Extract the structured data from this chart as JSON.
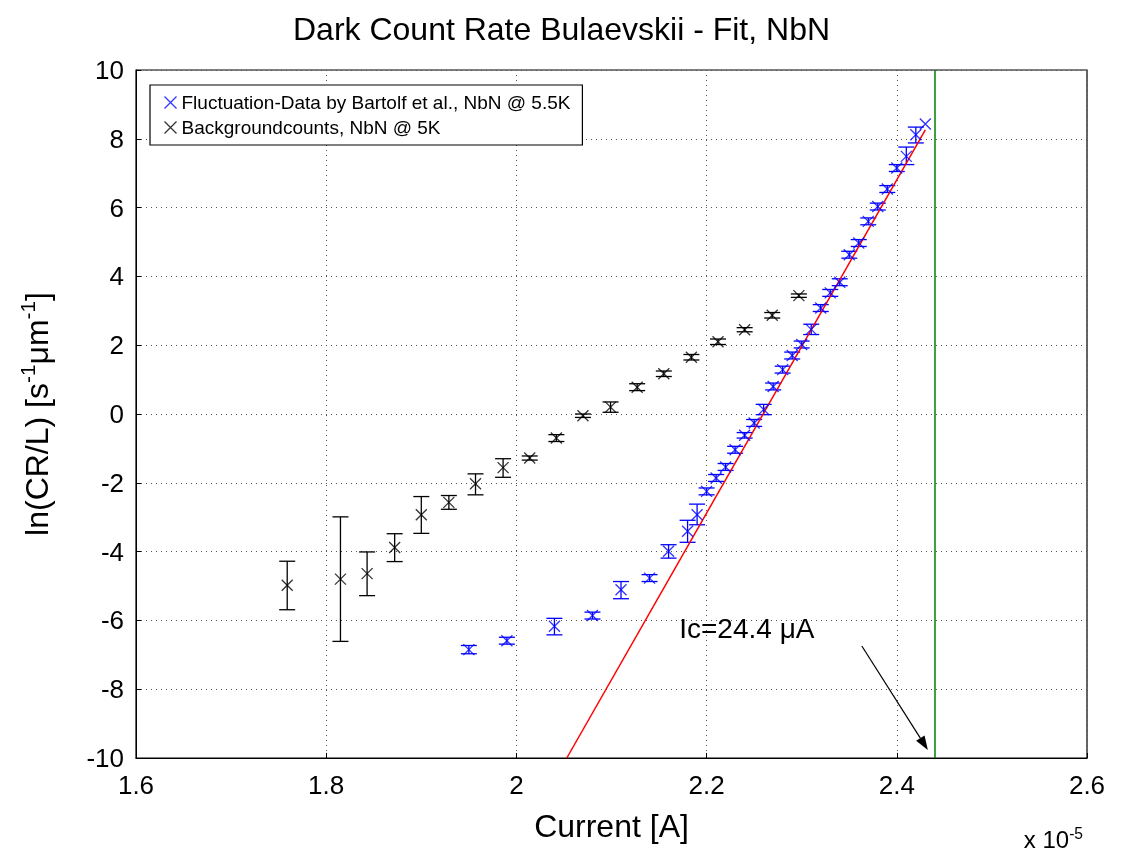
{
  "chart_data": {
    "type": "scatter",
    "title": "Dark Count Rate Bulaevskii - Fit, NbN",
    "xlabel": "Current [A]",
    "ylabel": "ln(CR/L) [s$^{-1}$μm$^{-1}$]",
    "xlim": [
      1.6,
      2.6
    ],
    "xticks": [
      1.6,
      1.8,
      2,
      2.2,
      2.4,
      2.6
    ],
    "ylim": [
      -10,
      10
    ],
    "yticks": [
      -10,
      -8,
      -6,
      -4,
      -2,
      0,
      2,
      4,
      6,
      8,
      10
    ],
    "grid": true,
    "legend": "top left",
    "marker": "cross",
    "series": [
      {
        "name": "Fluctuation-Data by Bartolf et al., NbN @ 5.5K",
        "color": "#0000ff",
        "x": [
          1.95,
          1.99,
          2.04,
          2.08,
          2.11,
          2.14,
          2.16,
          2.18,
          2.19,
          2.2,
          2.21,
          2.22,
          2.23,
          2.24,
          2.25,
          2.26,
          2.27,
          2.28,
          2.29,
          2.3,
          2.31,
          2.32,
          2.33,
          2.34,
          2.35,
          2.36,
          2.37,
          2.38,
          2.39,
          2.4,
          2.41,
          2.42,
          2.43
        ],
        "values": [
          -6.85,
          -6.59,
          -6.17,
          -5.86,
          -5.11,
          -4.77,
          -3.99,
          -3.41,
          -2.93,
          -2.25,
          -1.86,
          -1.54,
          -1.04,
          -0.62,
          -0.26,
          0.13,
          0.8,
          1.29,
          1.7,
          2.02,
          2.46,
          3.08,
          3.52,
          3.83,
          4.63,
          4.97,
          5.6,
          6.03,
          6.54,
          7.15,
          7.49,
          8.12,
          8.43
        ],
        "errors": [
          0.12,
          0.1,
          [
            -6.42,
            -5.94
          ],
          0.1,
          [
            -5.37,
            -4.87
          ],
          0.1,
          [
            -4.19,
            -3.8
          ],
          [
            -3.73,
            -3.09
          ],
          [
            -3.22,
            -2.62
          ],
          0.1,
          0.1,
          0.1,
          0.1,
          0.08,
          0.1,
          0.15,
          0.1,
          0.1,
          0.1,
          0.1,
          0.15,
          0.1,
          0.1,
          0.1,
          0.1,
          0.1,
          0.1,
          0.1,
          0.1,
          0.1,
          [
            7.25,
            7.76
          ],
          [
            7.88,
            8.34
          ],
          null
        ]
      },
      {
        "name": "Backgroundcounts, NbN @ 5K",
        "color": "#000000",
        "x": [
          1.759,
          1.815,
          1.843,
          1.872,
          1.9,
          1.929,
          1.957,
          1.986,
          2.014,
          2.042,
          2.07,
          2.099,
          2.127,
          2.155,
          2.184,
          2.212,
          2.24,
          2.269,
          2.297
        ],
        "values": [
          -4.98,
          -4.8,
          -4.64,
          -3.88,
          -2.93,
          -2.57,
          -2.03,
          -1.56,
          -1.28,
          -0.7,
          -0.05,
          0.2,
          0.78,
          1.17,
          1.65,
          2.1,
          2.45,
          2.87,
          3.44
        ],
        "errors": [
          [
            -5.69,
            -4.28
          ],
          [
            -6.61,
            -2.99
          ],
          [
            -5.28,
            -4.01
          ],
          [
            -4.29,
            -3.48
          ],
          [
            -3.47,
            -2.4
          ],
          [
            -2.77,
            -2.37
          ],
          [
            -2.35,
            -1.74
          ],
          [
            -1.84,
            -1.3
          ],
          0.06,
          0.1,
          0.05,
          0.15,
          0.1,
          0.08,
          0.08,
          0.08,
          0.06,
          0.08,
          0.05
        ]
      },
      {
        "type": "line",
        "marker": "none",
        "color": "#ff0000",
        "x": [
          2.053,
          2.43
        ],
        "values": [
          -10,
          8.26
        ]
      }
    ],
    "ref_lines": [
      {
        "axis": "x",
        "value": 2.44,
        "color": "#008000"
      }
    ],
    "annotations": [
      "Ic=24.4 μA",
      "x 10$^{-5}$"
    ]
  }
}
